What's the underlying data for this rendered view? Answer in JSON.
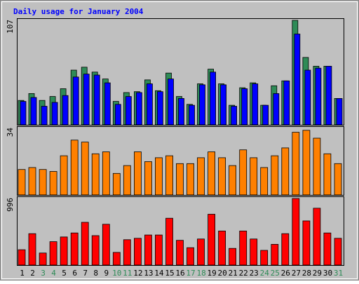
{
  "chart_data": {
    "type": "bar",
    "title": "Daily usage for January 2004",
    "categories": [
      "1",
      "2",
      "3",
      "4",
      "5",
      "6",
      "7",
      "8",
      "9",
      "10",
      "11",
      "12",
      "13",
      "14",
      "15",
      "16",
      "17",
      "18",
      "19",
      "20",
      "21",
      "22",
      "23",
      "24",
      "25",
      "26",
      "27",
      "28",
      "29",
      "30",
      "31"
    ],
    "weekend_days": [
      "3",
      "4",
      "10",
      "11",
      "17",
      "18",
      "24",
      "25",
      "31"
    ],
    "panels": [
      {
        "scale_label": "107",
        "ylim": [
          0,
          107
        ],
        "series": [
          {
            "color": "#2e8b57",
            "values": [
              25,
              32,
              25,
              29,
              37,
              56,
              59,
              54,
              47,
              24,
              33,
              34,
              46,
              35,
              53,
              29,
              21,
              42,
              57,
              42,
              20,
              38,
              43,
              20,
              40,
              45,
              107,
              69,
              60,
              60,
              27
            ]
          },
          {
            "color": "#0000ff",
            "values": [
              24,
              28,
              19,
              23,
              30,
              49,
              52,
              51,
              43,
              21,
              29,
              33,
              42,
              34,
              47,
              27,
              20,
              41,
              54,
              41,
              19,
              37,
              42,
              20,
              32,
              45,
              93,
              56,
              58,
              60,
              27
            ]
          }
        ]
      },
      {
        "scale_label": "34",
        "ylim": [
          0,
          34
        ],
        "series": [
          {
            "color": "#ff8000",
            "values": [
              13,
              14,
              13,
              12,
              20,
              28,
              27,
              21,
              22,
              11,
              15,
              22,
              17,
              19,
              20,
              16,
              16,
              19,
              22,
              19,
              15,
              23,
              19,
              14,
              20,
              24,
              32,
              33,
              29,
              21,
              16
            ]
          }
        ]
      },
      {
        "scale_label": "996",
        "ylim": [
          0,
          996
        ],
        "series": [
          {
            "color": "#ff0000",
            "values": [
              230,
              470,
              180,
              350,
              420,
              480,
              640,
              440,
              610,
              190,
              380,
              400,
              450,
              450,
              700,
              370,
              260,
              390,
              760,
              510,
              250,
              510,
              390,
              220,
              310,
              470,
              996,
              660,
              850,
              480,
              400
            ]
          }
        ]
      }
    ]
  },
  "colors": {
    "frame_bg": "#c0c0c0",
    "border": "#000000",
    "title": "#0000ff",
    "weekday_label": "#000000",
    "weekend_label": "#2e8b57"
  }
}
